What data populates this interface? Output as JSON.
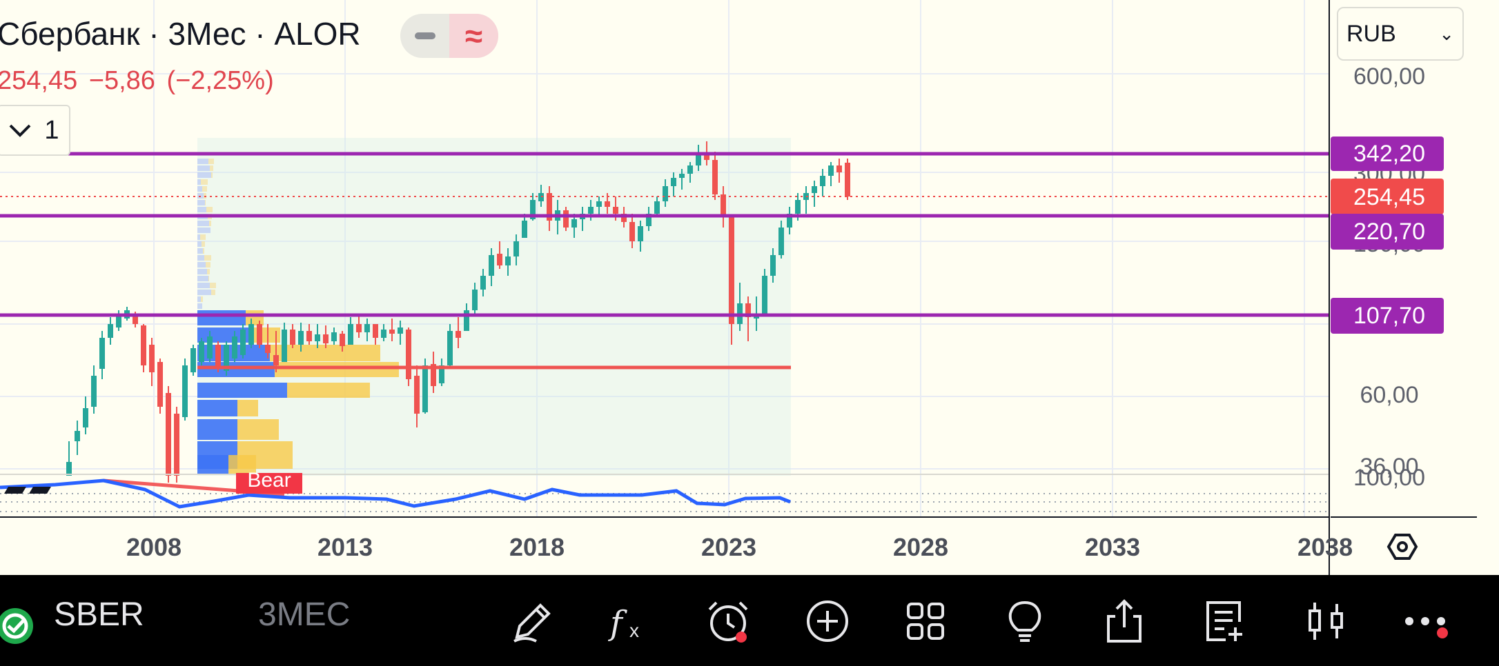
{
  "header": {
    "title": "Сбербанк · 3Мес · ALOR",
    "price_line": "254,45 −5,86 (−2,25%)"
  },
  "indicator_collapse": {
    "chevron": "chevron-down-icon",
    "count": "1"
  },
  "currency_select": {
    "value": "RUB"
  },
  "price_axis": {
    "ticks": [
      "600,00",
      "300,00",
      "150,00",
      "60,00",
      "36,00"
    ],
    "oscillator_tick": "100,00",
    "labels": [
      {
        "name": "level-342",
        "text": "342,20",
        "color": "#9c27b0"
      },
      {
        "name": "last-price",
        "text": "254,45",
        "color": "#f04b4b"
      },
      {
        "name": "level-220",
        "text": "220,70",
        "color": "#9c27b0"
      },
      {
        "name": "level-107",
        "text": "107,70",
        "color": "#9c27b0"
      }
    ]
  },
  "time_axis": {
    "ticks": [
      "2008",
      "2013",
      "2018",
      "2023",
      "2028",
      "2033",
      "2038"
    ]
  },
  "indicator_label": "Bear",
  "bottom_bar": {
    "symbol": "SBER",
    "timeframe": "3МЕС",
    "icons": [
      "pencil-icon",
      "function-icon",
      "alert-clock-icon",
      "add-circle-icon",
      "grid-icon",
      "idea-bulb-icon",
      "share-icon",
      "news-icon",
      "candles-icon",
      "more-icon"
    ]
  },
  "colors": {
    "up": "#26a69a",
    "down": "#ef5350",
    "level": "#9c27b0",
    "background": "#fffef2"
  }
}
